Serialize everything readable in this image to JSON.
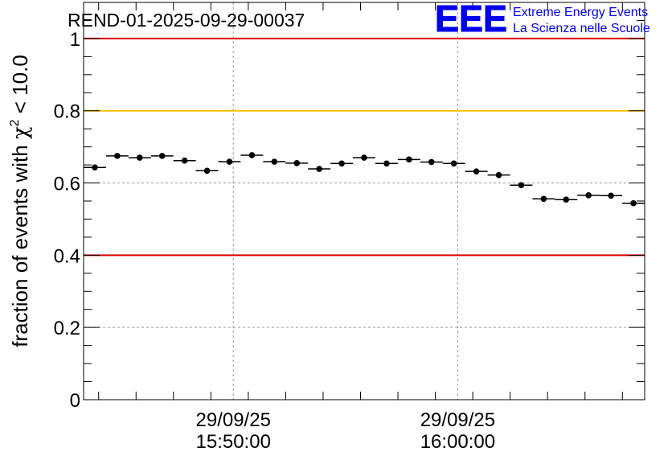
{
  "chart_data": {
    "type": "scatter",
    "title": "REND-01-2025-09-29-00037",
    "xlabel": "",
    "ylabel": "fraction of events with χ² < 10.0",
    "ylabel_parts": {
      "prefix": "fraction of events with ",
      "symbol": "χ",
      "exponent": "2",
      "suffix": " < 10.0"
    },
    "ylim": [
      0,
      1.1
    ],
    "yticks": [
      "0",
      "0.2",
      "0.4",
      "0.6",
      "0.8",
      "1"
    ],
    "ytick_values": [
      0,
      0.2,
      0.4,
      0.6,
      0.8,
      1.0
    ],
    "xlim_minutes": [
      0,
      25
    ],
    "xticks": [
      {
        "minute": 6.67,
        "date": "29/09/25",
        "time": "15:50:00"
      },
      {
        "minute": 16.67,
        "date": "29/09/25",
        "time": "16:00:00"
      }
    ],
    "grid": true,
    "reference_lines": [
      {
        "value": 1.0,
        "color": "#dd0000"
      },
      {
        "value": 0.8,
        "color": "#ffc000"
      },
      {
        "value": 0.4,
        "color": "#dd0000"
      }
    ],
    "series": [
      {
        "name": "fraction",
        "bin_width_minutes": 1,
        "x_minutes": [
          0.5,
          1.5,
          2.5,
          3.5,
          4.5,
          5.5,
          6.5,
          7.5,
          8.5,
          9.5,
          10.5,
          11.5,
          12.5,
          13.5,
          14.5,
          15.5,
          16.5,
          17.5,
          18.5,
          19.5,
          20.5,
          21.5,
          22.5,
          23.5,
          24.5
        ],
        "values": [
          0.643,
          0.675,
          0.67,
          0.675,
          0.662,
          0.634,
          0.659,
          0.677,
          0.659,
          0.655,
          0.639,
          0.654,
          0.67,
          0.654,
          0.665,
          0.658,
          0.654,
          0.632,
          0.622,
          0.594,
          0.556,
          0.554,
          0.566,
          0.565,
          0.544
        ],
        "color": "#000000"
      }
    ]
  },
  "logo": {
    "mark": "EEE",
    "line1": "Extreme Energy Events",
    "line2": "La Scienza nelle Scuole",
    "color": "#0000ee"
  }
}
